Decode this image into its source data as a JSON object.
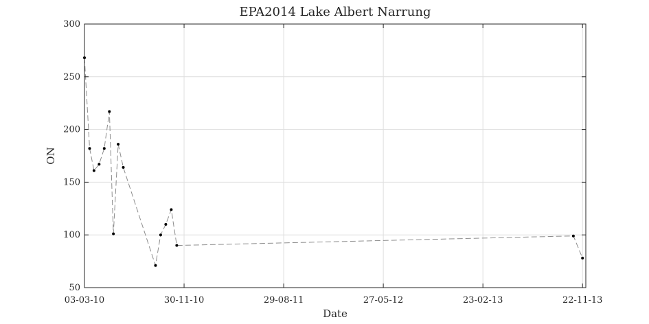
{
  "chart_data": {
    "type": "line",
    "title": "EPA2014 Lake Albert Narrung",
    "xlabel": "Date",
    "ylabel": "ON",
    "ylim": [
      50,
      300
    ],
    "yticks": [
      "50",
      "100",
      "150",
      "200",
      "250",
      "300"
    ],
    "xlim": [
      "2010-03-03",
      "2013-12-01"
    ],
    "xticks": [
      {
        "date": "2010-03-03",
        "label": "03-03-10"
      },
      {
        "date": "2010-11-30",
        "label": "30-11-10"
      },
      {
        "date": "2011-08-29",
        "label": "29-08-11"
      },
      {
        "date": "2012-05-27",
        "label": "27-05-12"
      },
      {
        "date": "2013-02-23",
        "label": "23-02-13"
      },
      {
        "date": "2013-11-22",
        "label": "22-11-13"
      }
    ],
    "grid": true,
    "line_style": "dashed",
    "marker": "dot",
    "series": [
      {
        "points": [
          {
            "x": "2010-03-03",
            "y": 268
          },
          {
            "x": "2010-03-17",
            "y": 182
          },
          {
            "x": "2010-03-29",
            "y": 161
          },
          {
            "x": "2010-04-12",
            "y": 167
          },
          {
            "x": "2010-04-26",
            "y": 182
          },
          {
            "x": "2010-05-10",
            "y": 217
          },
          {
            "x": "2010-05-21",
            "y": 101
          },
          {
            "x": "2010-06-03",
            "y": 186
          },
          {
            "x": "2010-06-17",
            "y": 164
          },
          {
            "x": "2010-09-13",
            "y": 71
          },
          {
            "x": "2010-09-27",
            "y": 100
          },
          {
            "x": "2010-10-11",
            "y": 110
          },
          {
            "x": "2010-10-26",
            "y": 124
          },
          {
            "x": "2010-11-10",
            "y": 90
          },
          {
            "x": "2013-10-28",
            "y": 99
          },
          {
            "x": "2013-11-22",
            "y": 78
          }
        ]
      }
    ]
  },
  "colors": {
    "line": "#8c8c8c",
    "marker": "#000000",
    "grid": "#dedede",
    "axis": "#262626"
  }
}
